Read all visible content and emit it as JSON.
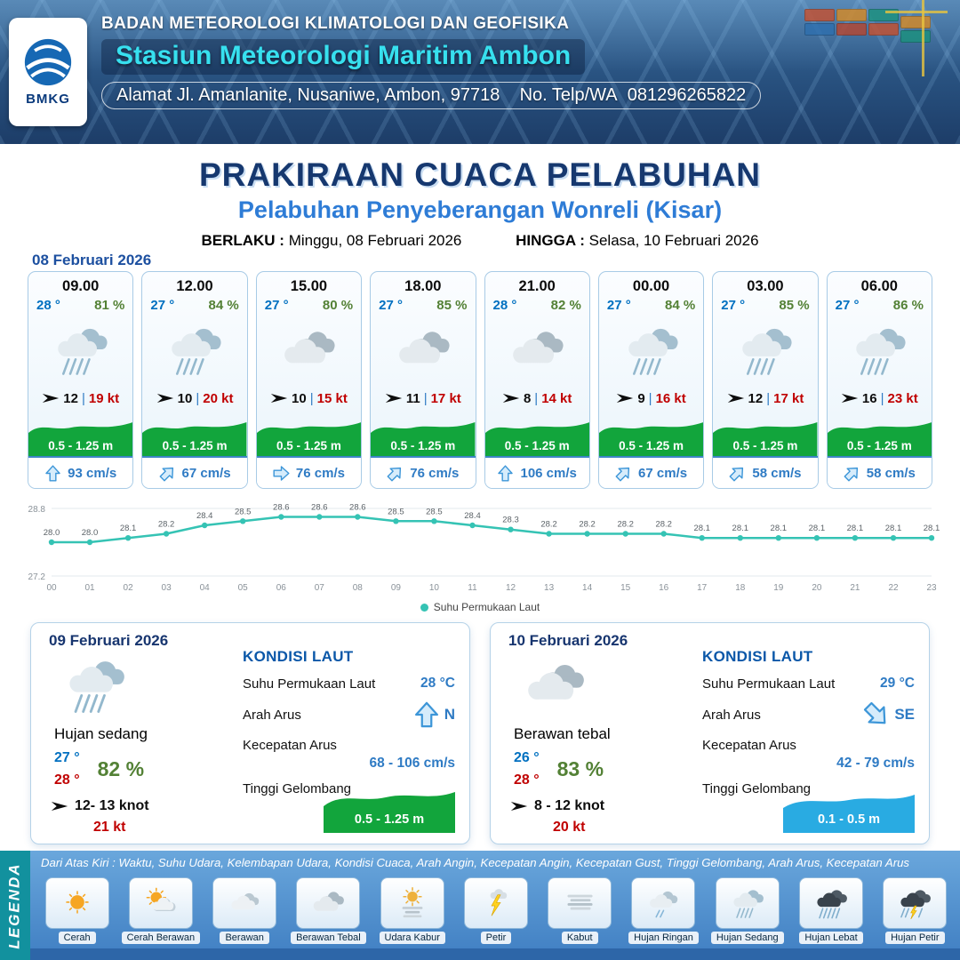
{
  "header": {
    "logo": "BMKG",
    "agency": "BADAN METEOROLOGI KLIMATOLOGI DAN GEOFISIKA",
    "station": "Stasiun Meteorologi Maritim Ambon",
    "address": "Alamat Jl. Amanlanite, Nusaniwe, Ambon, 97718",
    "phone_label": "No. Telp/WA",
    "phone": "081296265822"
  },
  "title": {
    "main": "PRAKIRAAN CUACA PELABUHAN",
    "subtitle": "Pelabuhan Penyeberangan Wonreli (Kisar)",
    "valid_from_label": "BERLAKU :",
    "valid_from": "Minggu, 08 Februari 2026",
    "valid_to_label": "HINGGA :",
    "valid_to": "Selasa, 10 Februari 2026"
  },
  "forecast": {
    "date": "08 Februari 2026",
    "separator": "|",
    "cards": [
      {
        "time": "09.00",
        "temp": "28 °",
        "humidity": "81 %",
        "icon": "hujan-sedang",
        "wind": "12",
        "gust": "19 kt",
        "wave": "0.5 - 1.25 m",
        "current_dir": "up",
        "current": "93 cm/s"
      },
      {
        "time": "12.00",
        "temp": "27 °",
        "humidity": "84 %",
        "icon": "hujan-sedang",
        "wind": "10",
        "gust": "20 kt",
        "wave": "0.5 - 1.25 m",
        "current_dir": "up-right",
        "current": "67 cm/s"
      },
      {
        "time": "15.00",
        "temp": "27 °",
        "humidity": "80 %",
        "icon": "berawan-tebal",
        "wind": "10",
        "gust": "15 kt",
        "wave": "0.5 - 1.25 m",
        "current_dir": "right",
        "current": "76 cm/s"
      },
      {
        "time": "18.00",
        "temp": "27 °",
        "humidity": "85 %",
        "icon": "berawan-tebal",
        "wind": "11",
        "gust": "17 kt",
        "wave": "0.5 - 1.25 m",
        "current_dir": "up-right",
        "current": "76 cm/s"
      },
      {
        "time": "21.00",
        "temp": "28 °",
        "humidity": "82 %",
        "icon": "berawan-tebal",
        "wind": "8",
        "gust": "14 kt",
        "wave": "0.5 - 1.25 m",
        "current_dir": "up",
        "current": "106 cm/s"
      },
      {
        "time": "00.00",
        "temp": "27 °",
        "humidity": "84 %",
        "icon": "hujan-sedang",
        "wind": "9",
        "gust": "16 kt",
        "wave": "0.5 - 1.25 m",
        "current_dir": "up-right",
        "current": "67 cm/s"
      },
      {
        "time": "03.00",
        "temp": "27 °",
        "humidity": "85 %",
        "icon": "hujan-sedang",
        "wind": "12",
        "gust": "17 kt",
        "wave": "0.5 - 1.25 m",
        "current_dir": "up-right",
        "current": "58 cm/s"
      },
      {
        "time": "06.00",
        "temp": "27 °",
        "humidity": "86 %",
        "icon": "hujan-sedang",
        "wind": "16",
        "gust": "23 kt",
        "wave": "0.5 - 1.25 m",
        "current_dir": "up-right",
        "current": "58 cm/s"
      }
    ]
  },
  "chart_data": {
    "type": "line",
    "legend_label": "Suhu Permukaan Laut",
    "x": [
      "00",
      "01",
      "02",
      "03",
      "04",
      "05",
      "06",
      "07",
      "08",
      "09",
      "10",
      "11",
      "12",
      "13",
      "14",
      "15",
      "16",
      "17",
      "18",
      "19",
      "20",
      "21",
      "22",
      "23"
    ],
    "values": [
      28.0,
      28.0,
      28.1,
      28.2,
      28.4,
      28.5,
      28.6,
      28.6,
      28.6,
      28.5,
      28.5,
      28.4,
      28.3,
      28.2,
      28.2,
      28.2,
      28.2,
      28.1,
      28.1,
      28.1,
      28.1,
      28.1,
      28.1,
      28.1
    ],
    "ylim": [
      27.2,
      28.8
    ],
    "color": "#35c3b4",
    "xlabel": "",
    "ylabel": "",
    "grid": true,
    "legend_position": "bottom"
  },
  "day_cards": [
    {
      "date": "09 Februari 2026",
      "icon": "hujan-sedang",
      "condition": "Hujan sedang",
      "temp_min": "27 °",
      "temp_max": "28 °",
      "humidity": "82 %",
      "wind": "12- 13 knot",
      "gust": "21 kt",
      "sea_title": "KONDISI LAUT",
      "sst_label": "Suhu Permukaan Laut",
      "sst": "28 °C",
      "current_dir_label": "Arah Arus",
      "current_dir": "up",
      "current_dir_text": "N",
      "current_speed_label": "Kecepatan Arus",
      "current_speed": "68 - 106 cm/s",
      "wave_label": "Tinggi Gelombang",
      "wave": "0.5 - 1.25 m",
      "wave_color": "#12a53c"
    },
    {
      "date": "10 Februari 2026",
      "icon": "berawan-tebal",
      "condition": "Berawan tebal",
      "temp_min": "26 °",
      "temp_max": "28 °",
      "humidity": "83 %",
      "wind": "8 - 12 knot",
      "gust": "20 kt",
      "sea_title": "KONDISI LAUT",
      "sst_label": "Suhu Permukaan Laut",
      "sst": "29 °C",
      "current_dir_label": "Arah Arus",
      "current_dir": "down-right",
      "current_dir_text": "SE",
      "current_speed_label": "Kecepatan Arus",
      "current_speed": "42 - 79 cm/s",
      "wave_label": "Tinggi Gelombang",
      "wave": "0.1 - 0.5 m",
      "wave_color": "#29abe2"
    }
  ],
  "legend": {
    "vertical_label": "LEGENDA",
    "description": "Dari Atas Kiri : Waktu, Suhu Udara, Kelembapan Udara, Kondisi Cuaca, Arah Angin, Kecepatan Angin, Kecepatan Gust, Tinggi Gelombang, Arah Arus, Kecepatan Arus",
    "items": [
      {
        "icon": "cerah",
        "label": "Cerah"
      },
      {
        "icon": "cerah-berawan",
        "label": "Cerah Berawan"
      },
      {
        "icon": "berawan",
        "label": "Berawan"
      },
      {
        "icon": "berawan-tebal",
        "label": "Berawan Tebal"
      },
      {
        "icon": "udara-kabur",
        "label": "Udara Kabur"
      },
      {
        "icon": "petir",
        "label": "Petir"
      },
      {
        "icon": "kabut",
        "label": "Kabut"
      },
      {
        "icon": "hujan-ringan",
        "label": "Hujan Ringan"
      },
      {
        "icon": "hujan-sedang",
        "label": "Hujan Sedang"
      },
      {
        "icon": "hujan-lebat",
        "label": "Hujan Lebat"
      },
      {
        "icon": "hujan-petir",
        "label": "Hujan Petir"
      }
    ]
  }
}
